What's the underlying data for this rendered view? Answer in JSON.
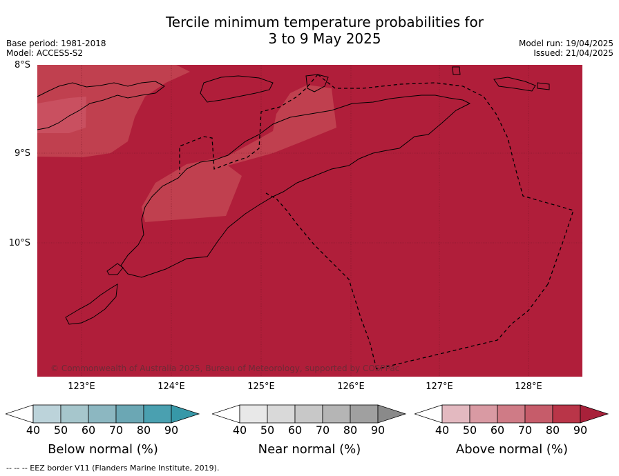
{
  "title_line1": "Tercile minimum temperature probabilities for",
  "title_line2": "3 to 9 May 2025",
  "meta_left": {
    "base_period": "Base period: 1981-2018",
    "model": "Model: ACCESS-S2"
  },
  "meta_right": {
    "model_run": "Model run: 19/04/2025",
    "issued": "Issued: 21/04/2025"
  },
  "lat_labels": [
    "8°S",
    "9°S",
    "10°S"
  ],
  "lon_labels": [
    "123°E",
    "124°E",
    "125°E",
    "126°E",
    "127°E",
    "128°E"
  ],
  "credit": "© Commonwealth of Australia 2025, Bureau of Meteorology, supported by COSPPac",
  "colorbars": [
    {
      "title": "Below normal (%)",
      "ticks": [
        "40",
        "50",
        "60",
        "70",
        "80",
        "90"
      ],
      "colors": [
        "#ffffff",
        "#bcd3da",
        "#a6c6cc",
        "#8cb7c1",
        "#6ba7b4",
        "#4aa0b0",
        "#3798a8"
      ]
    },
    {
      "title": "Near normal (%)",
      "ticks": [
        "40",
        "50",
        "60",
        "70",
        "80",
        "90"
      ],
      "colors": [
        "#ffffff",
        "#e8e8e8",
        "#d9d9d9",
        "#c8c8c8",
        "#b5b5b5",
        "#a0a0a0",
        "#8a8a8a"
      ]
    },
    {
      "title": "Above normal (%)",
      "ticks": [
        "40",
        "50",
        "60",
        "70",
        "80",
        "90"
      ],
      "colors": [
        "#ffffff",
        "#e3b9c0",
        "#d99aa3",
        "#cf7b86",
        "#c65c6a",
        "#b93548",
        "#a8213a"
      ]
    }
  ],
  "map_colors": {
    "dominant": "#b01e3a",
    "lighter_zone": "#c0404f",
    "lightest_zone": "#c95060"
  },
  "footnote": "--  --  -- EEZ border V11 (Flanders Marine Institute, 2019)."
}
